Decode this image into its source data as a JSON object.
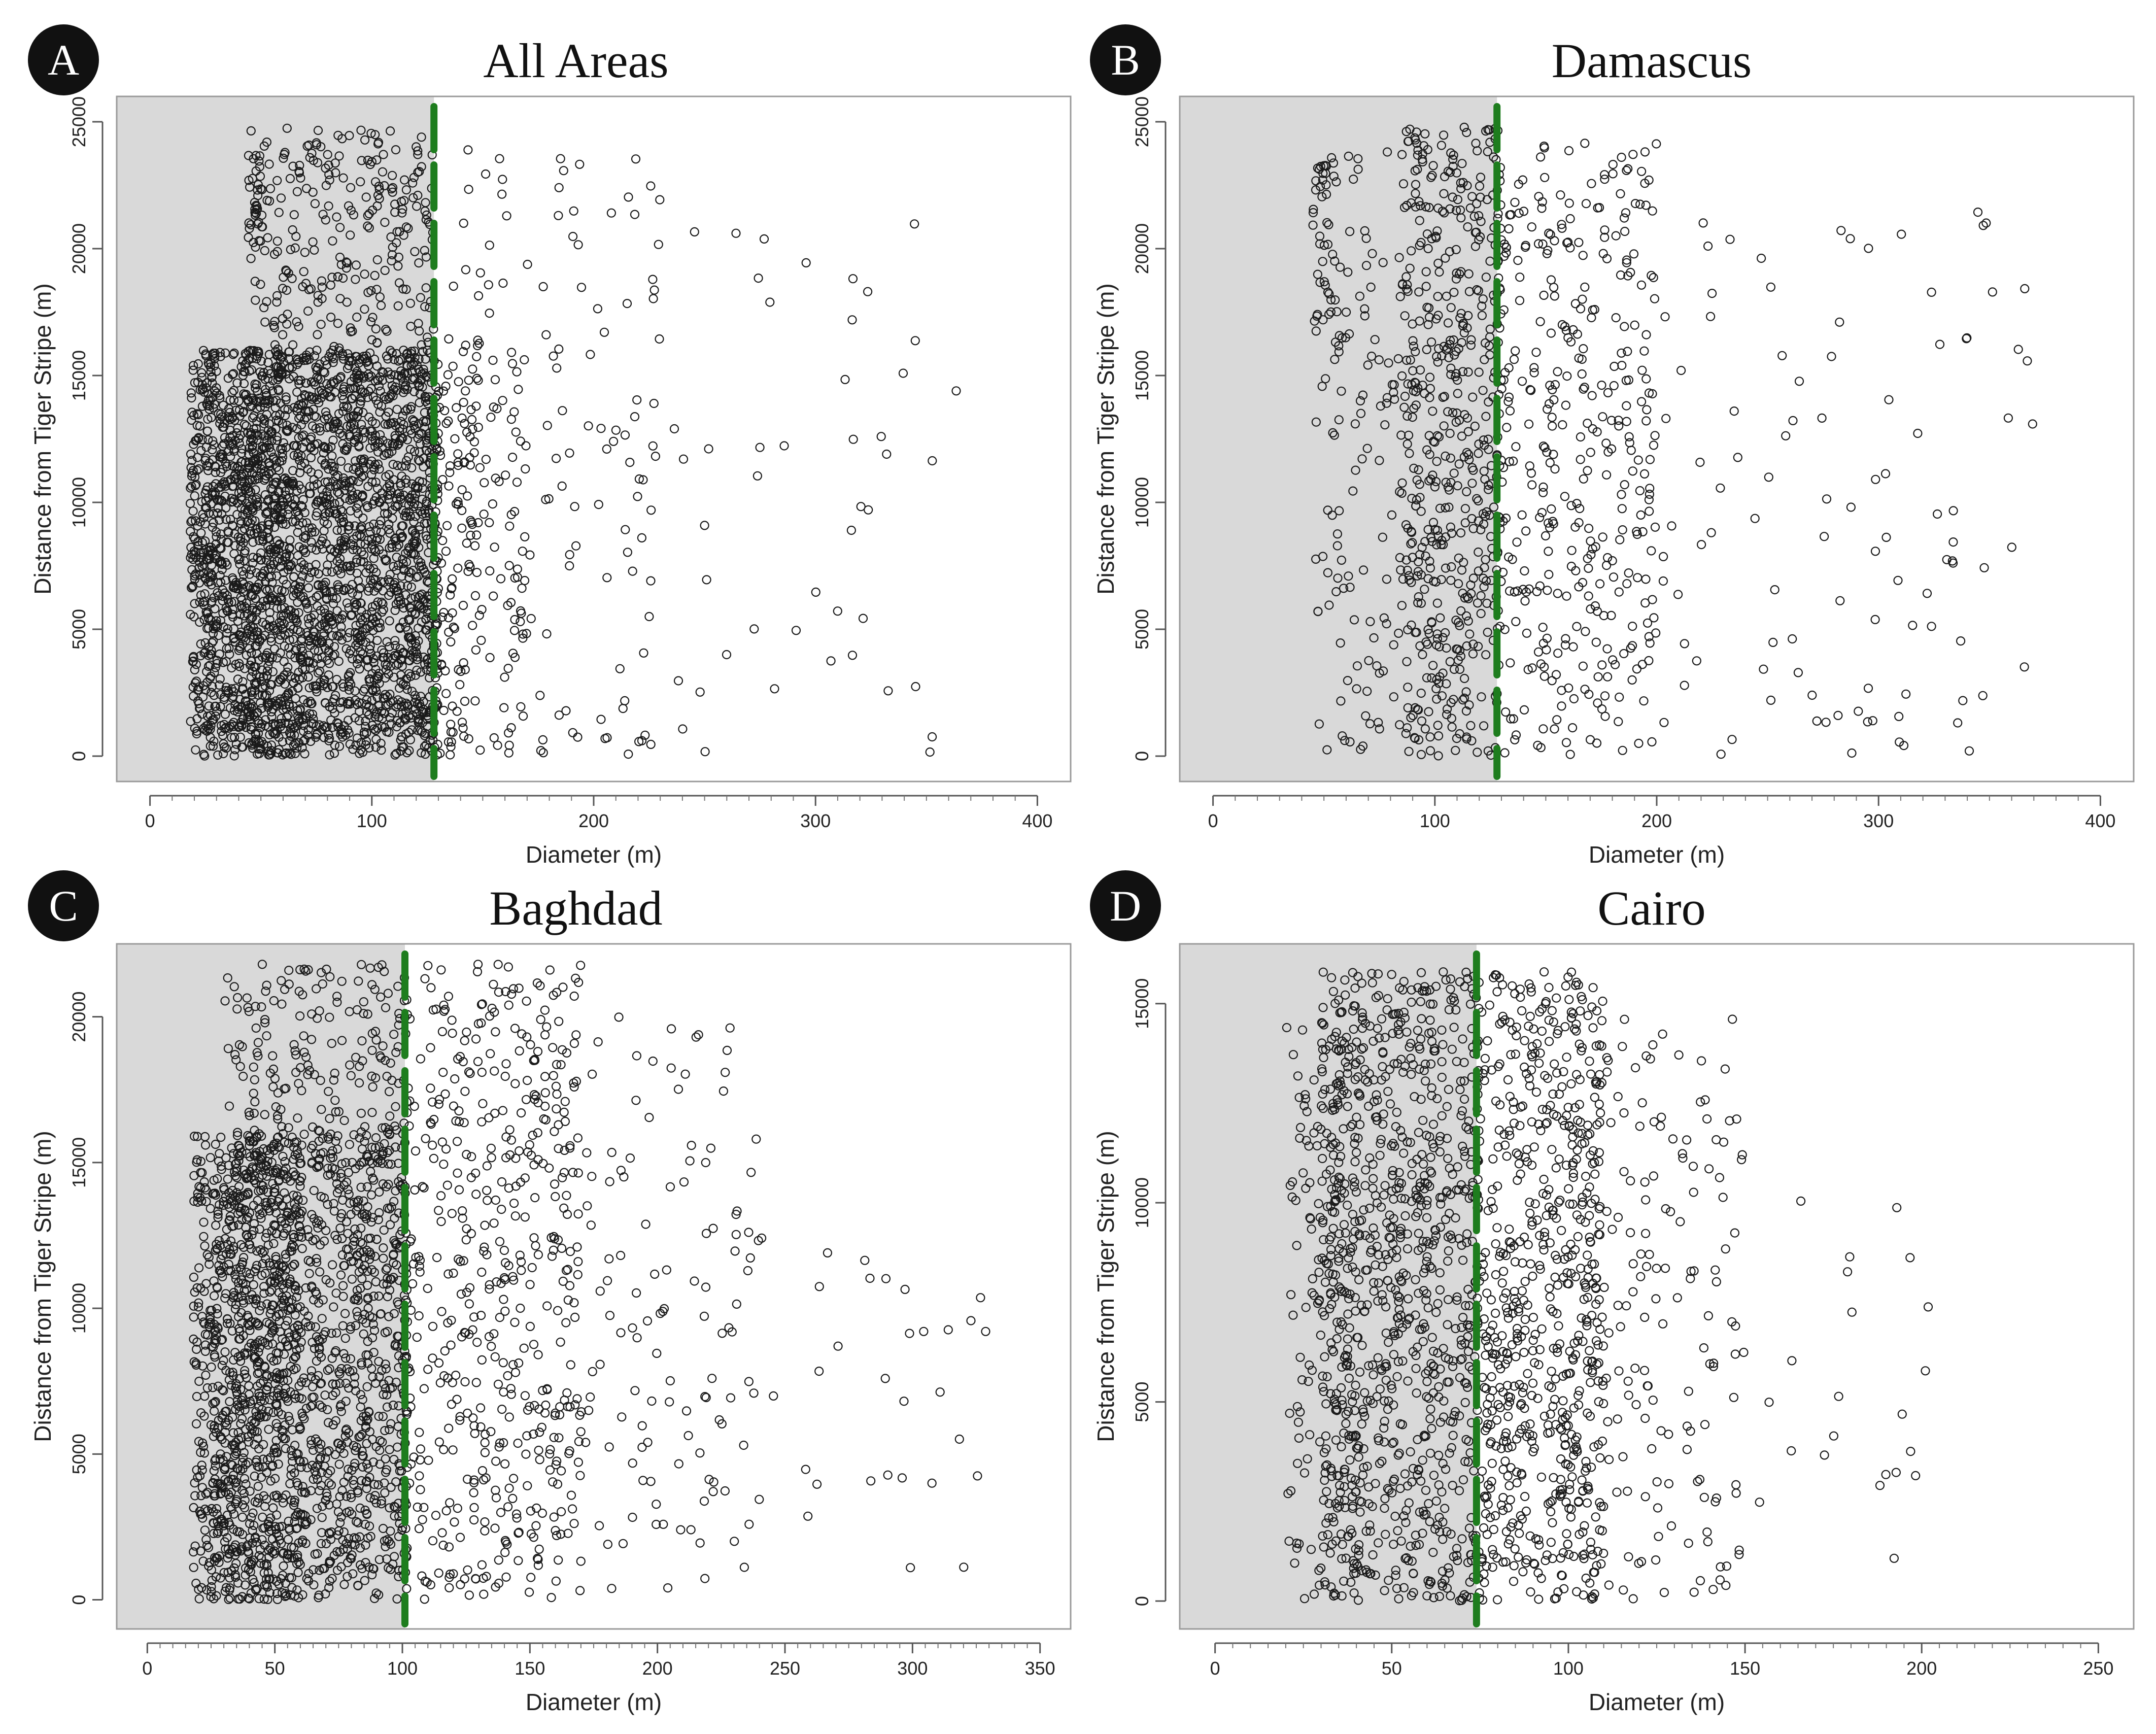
{
  "colors": {
    "shade": "#d9d9d9",
    "point": "#1a1a1a",
    "threshold": "#1e7d1e",
    "frame": "#9a9a9a",
    "badge": "#111111"
  },
  "chart_data": [
    {
      "type": "scatter",
      "panel_letter": "A",
      "title": "All Areas",
      "xlabel": "Diameter (m)",
      "ylabel": "Distance from Tiger Stripe (m)",
      "xlim": [
        -15,
        415
      ],
      "ylim": [
        -1000,
        26000
      ],
      "x_ticks": [
        0,
        100,
        200,
        300,
        400
      ],
      "x_tick_labels": [
        "0",
        "100",
        "200",
        "300",
        "400"
      ],
      "y_ticks": [
        0,
        5000,
        10000,
        15000,
        20000,
        25000
      ],
      "y_tick_labels": [
        "0",
        "5000",
        "10000",
        "15000",
        "20000",
        "25000"
      ],
      "threshold_x": 128,
      "shade_range": [
        -15,
        128
      ],
      "point_style": "open-circle",
      "clusters": [
        {
          "count": 1500,
          "x": [
            18,
            130
          ],
          "y": [
            0,
            16000
          ]
        },
        {
          "count": 400,
          "x": [
            18,
            60
          ],
          "y": [
            0,
            16000
          ]
        },
        {
          "count": 900,
          "x": [
            40,
            130
          ],
          "y": [
            0,
            16000
          ]
        },
        {
          "count": 280,
          "x": [
            45,
            128
          ],
          "y": [
            15000,
            24800
          ]
        },
        {
          "count": 30,
          "x": [
            44,
            52
          ],
          "y": [
            20000,
            23700
          ]
        },
        {
          "count": 160,
          "x": [
            128,
            170
          ],
          "y": [
            0,
            16000
          ]
        },
        {
          "count": 130,
          "x": [
            128,
            230
          ],
          "y": [
            0,
            24200
          ]
        },
        {
          "count": 55,
          "x": [
            200,
            370
          ],
          "y": [
            0,
            21000
          ]
        }
      ]
    },
    {
      "type": "scatter",
      "panel_letter": "B",
      "title": "Damascus",
      "xlabel": "Diameter (m)",
      "ylabel": "Distance from Tiger Stripe (m)",
      "xlim": [
        -15,
        415
      ],
      "ylim": [
        -1000,
        26000
      ],
      "x_ticks": [
        0,
        100,
        200,
        300,
        400
      ],
      "x_tick_labels": [
        "0",
        "100",
        "200",
        "300",
        "400"
      ],
      "y_ticks": [
        0,
        5000,
        10000,
        15000,
        20000,
        25000
      ],
      "y_tick_labels": [
        "0",
        "5000",
        "10000",
        "15000",
        "20000",
        "25000"
      ],
      "threshold_x": 128,
      "shade_range": [
        -15,
        128
      ],
      "point_style": "open-circle",
      "clusters": [
        {
          "count": 520,
          "x": [
            85,
            130
          ],
          "y": [
            0,
            24800
          ]
        },
        {
          "count": 120,
          "x": [
            45,
            85
          ],
          "y": [
            0,
            24000
          ]
        },
        {
          "count": 40,
          "x": [
            45,
            56
          ],
          "y": [
            17000,
            23700
          ]
        },
        {
          "count": 380,
          "x": [
            128,
            200
          ],
          "y": [
            0,
            24200
          ]
        },
        {
          "count": 100,
          "x": [
            200,
            370
          ],
          "y": [
            0,
            21500
          ]
        }
      ]
    },
    {
      "type": "scatter",
      "panel_letter": "C",
      "title": "Baghdad",
      "xlabel": "Diameter (m)",
      "ylabel": "Distance from Tiger Stripe (m)",
      "xlim": [
        -12,
        362
      ],
      "ylim": [
        -1000,
        22500
      ],
      "x_ticks": [
        0,
        50,
        100,
        150,
        200,
        250,
        300,
        350
      ],
      "x_tick_labels": [
        "0",
        "50",
        "100",
        "150",
        "200",
        "250",
        "300",
        "350"
      ],
      "y_ticks": [
        0,
        5000,
        10000,
        15000,
        20000
      ],
      "y_tick_labels": [
        "0",
        "5000",
        "10000",
        "15000",
        "20000"
      ],
      "threshold_x": 101,
      "shade_range": [
        -12,
        101
      ],
      "point_style": "open-circle",
      "clusters": [
        {
          "count": 1300,
          "x": [
            18,
            102
          ],
          "y": [
            0,
            16000
          ]
        },
        {
          "count": 500,
          "x": [
            25,
            60
          ],
          "y": [
            0,
            16000
          ]
        },
        {
          "count": 200,
          "x": [
            30,
            102
          ],
          "y": [
            15000,
            21800
          ]
        },
        {
          "count": 500,
          "x": [
            100,
            170
          ],
          "y": [
            0,
            21800
          ]
        },
        {
          "count": 140,
          "x": [
            160,
            240
          ],
          "y": [
            0,
            20000
          ]
        },
        {
          "count": 30,
          "x": [
            240,
            330
          ],
          "y": [
            0,
            12500
          ]
        }
      ]
    },
    {
      "type": "scatter",
      "panel_letter": "D",
      "title": "Cairo",
      "xlabel": "Diameter (m)",
      "ylabel": "Distance from Tiger Stripe (m)",
      "xlim": [
        -10,
        260
      ],
      "ylim": [
        -700,
        16500
      ],
      "x_ticks": [
        0,
        50,
        100,
        150,
        200,
        250
      ],
      "x_tick_labels": [
        "0",
        "50",
        "100",
        "150",
        "200",
        "250"
      ],
      "y_ticks": [
        0,
        5000,
        10000,
        15000
      ],
      "y_tick_labels": [
        "0",
        "5000",
        "10000",
        "15000"
      ],
      "threshold_x": 74,
      "shade_range": [
        -10,
        74
      ],
      "point_style": "open-circle",
      "clusters": [
        {
          "count": 900,
          "x": [
            30,
            75
          ],
          "y": [
            0,
            15800
          ]
        },
        {
          "count": 150,
          "x": [
            20,
            40
          ],
          "y": [
            0,
            14500
          ]
        },
        {
          "count": 650,
          "x": [
            74,
            110
          ],
          "y": [
            0,
            15800
          ]
        },
        {
          "count": 180,
          "x": [
            100,
            150
          ],
          "y": [
            0,
            14700
          ]
        },
        {
          "count": 22,
          "x": [
            150,
            205
          ],
          "y": [
            500,
            10500
          ]
        }
      ]
    }
  ]
}
